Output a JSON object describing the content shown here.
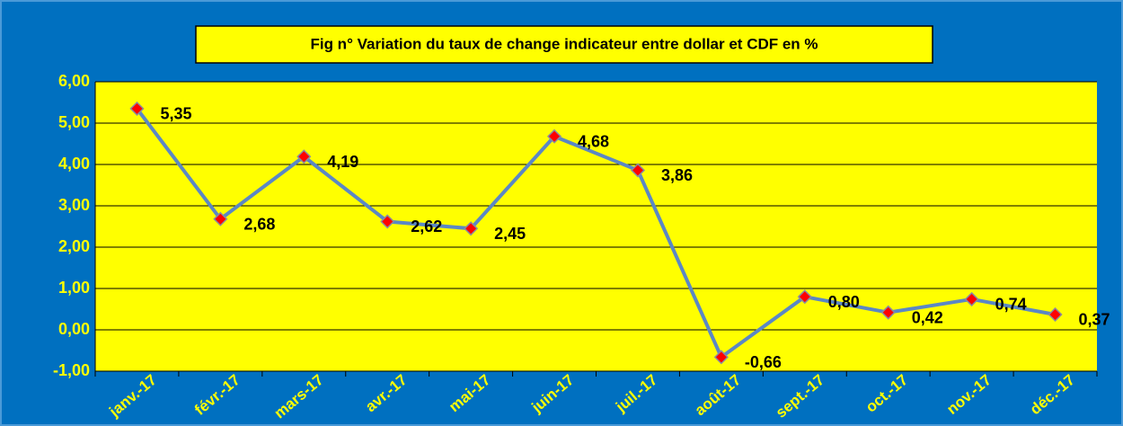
{
  "chart_data": {
    "type": "line",
    "title": "Fig n° Variation du taux de change indicateur entre dollar et CDF en %",
    "categories": [
      "janv.-17",
      "févr.-17",
      "mars-17",
      "avr.-17",
      "mai-17",
      "juin-17",
      "juil.-17",
      "août-17",
      "sept.-17",
      "oct.-17",
      "nov.-17",
      "déc.-17"
    ],
    "series": [
      {
        "name": "Variation",
        "color": "#5b87c5",
        "values": [
          5.35,
          2.68,
          4.19,
          2.62,
          2.45,
          4.68,
          3.86,
          -0.66,
          0.8,
          0.42,
          0.74,
          0.37
        ],
        "value_labels": [
          "5,35",
          "2,68",
          "4,19",
          "2,62",
          "2,45",
          "4,68",
          "3,86",
          "-0,66",
          "0,80",
          "0,42",
          "0,74",
          "0,37"
        ]
      }
    ],
    "ylim": [
      -1,
      6
    ],
    "yticks": [
      {
        "value": -1,
        "label": "-1,00"
      },
      {
        "value": 0,
        "label": "0,00"
      },
      {
        "value": 1,
        "label": "1,00"
      },
      {
        "value": 2,
        "label": "2,00"
      },
      {
        "value": 3,
        "label": "3,00"
      },
      {
        "value": 4,
        "label": "4,00"
      },
      {
        "value": 5,
        "label": "5,00"
      },
      {
        "value": 6,
        "label": "6,00"
      }
    ],
    "grid": true,
    "marker_color": "#ff0000",
    "plot_background": "#ffff00"
  }
}
